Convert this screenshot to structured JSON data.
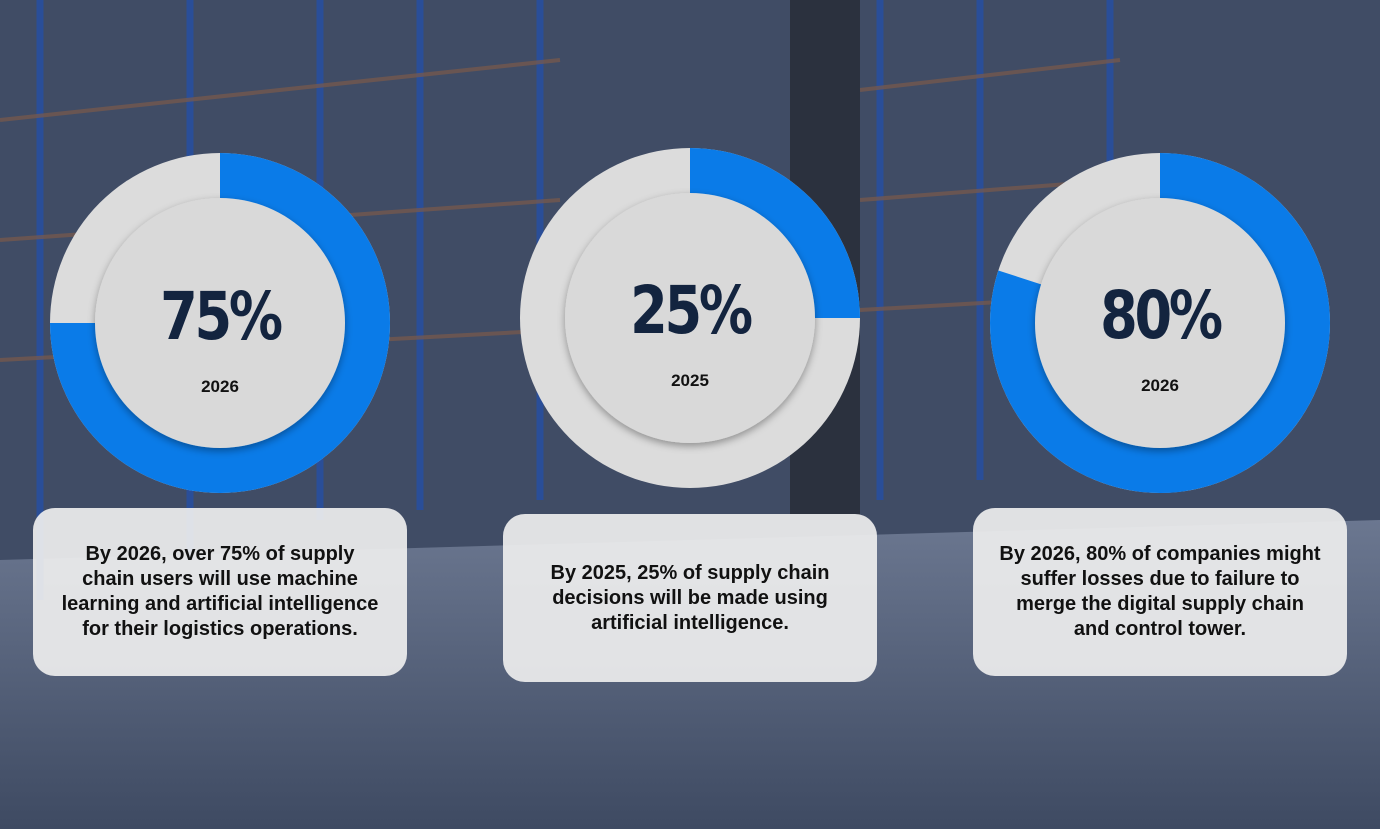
{
  "colors": {
    "accent": "#0a7be8",
    "track": "#dcdcdc",
    "inner": "#d9d9d9",
    "text": "#13243f"
  },
  "chart_data": [
    {
      "type": "pie",
      "value": 75,
      "label": "75%",
      "year": "2026",
      "description": "By 2026, over 75% of supply chain users will use machine learning and artificial intelligence for their logistics operations."
    },
    {
      "type": "pie",
      "value": 25,
      "label": "25%",
      "year": "2025",
      "description": "By 2025, 25% of supply chain decisions will be made using artificial intelligence."
    },
    {
      "type": "pie",
      "value": 80,
      "label": "80%",
      "year": "2026",
      "description": "By 2026, 80% of companies might suffer losses due to failure to merge the digital supply chain and control tower."
    }
  ]
}
